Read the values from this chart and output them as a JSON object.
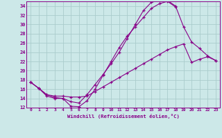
{
  "xlabel": "Windchill (Refroidissement éolien,°C)",
  "bg_color": "#cce8e8",
  "grid_color": "#aacccc",
  "line_color": "#880088",
  "xlim": [
    -0.5,
    23.5
  ],
  "ylim": [
    12,
    35
  ],
  "xticks": [
    0,
    1,
    2,
    3,
    4,
    5,
    6,
    7,
    8,
    9,
    10,
    11,
    12,
    13,
    14,
    15,
    16,
    17,
    18,
    19,
    20,
    21,
    22,
    23
  ],
  "yticks": [
    12,
    14,
    16,
    18,
    20,
    22,
    24,
    26,
    28,
    30,
    32,
    34
  ],
  "curve1_x": [
    0,
    1,
    2,
    3,
    4,
    5,
    6,
    7,
    8,
    9,
    10,
    11,
    12,
    13,
    14,
    15,
    16,
    17,
    18
  ],
  "curve1_y": [
    17.5,
    16.2,
    14.5,
    14.0,
    14.0,
    12.3,
    12.2,
    13.5,
    16.0,
    19.0,
    22.0,
    25.0,
    27.5,
    29.5,
    31.5,
    33.5,
    34.5,
    35.0,
    33.8
  ],
  "curve2_x": [
    0,
    1,
    2,
    3,
    4,
    5,
    6,
    7,
    8,
    9,
    10,
    11,
    12,
    13,
    14,
    15,
    16,
    17,
    18,
    19,
    20,
    21,
    22,
    23
  ],
  "curve2_y": [
    17.5,
    16.2,
    14.8,
    14.5,
    14.5,
    14.3,
    14.3,
    14.5,
    15.5,
    16.5,
    17.5,
    18.5,
    19.5,
    20.5,
    21.5,
    22.5,
    23.5,
    24.5,
    25.2,
    25.8,
    21.8,
    22.5,
    23.0,
    22.2
  ],
  "curve3_x": [
    0,
    1,
    2,
    3,
    4,
    5,
    6,
    7,
    8,
    9,
    10,
    11,
    12,
    13,
    14,
    15,
    16,
    17,
    18,
    19,
    20,
    21,
    22,
    23
  ],
  "curve3_y": [
    17.5,
    16.2,
    14.8,
    14.2,
    14.0,
    13.3,
    13.0,
    14.8,
    17.0,
    19.2,
    21.5,
    24.0,
    27.0,
    30.0,
    33.0,
    34.8,
    35.2,
    35.2,
    34.0,
    29.5,
    26.2,
    24.8,
    23.2,
    22.2
  ]
}
